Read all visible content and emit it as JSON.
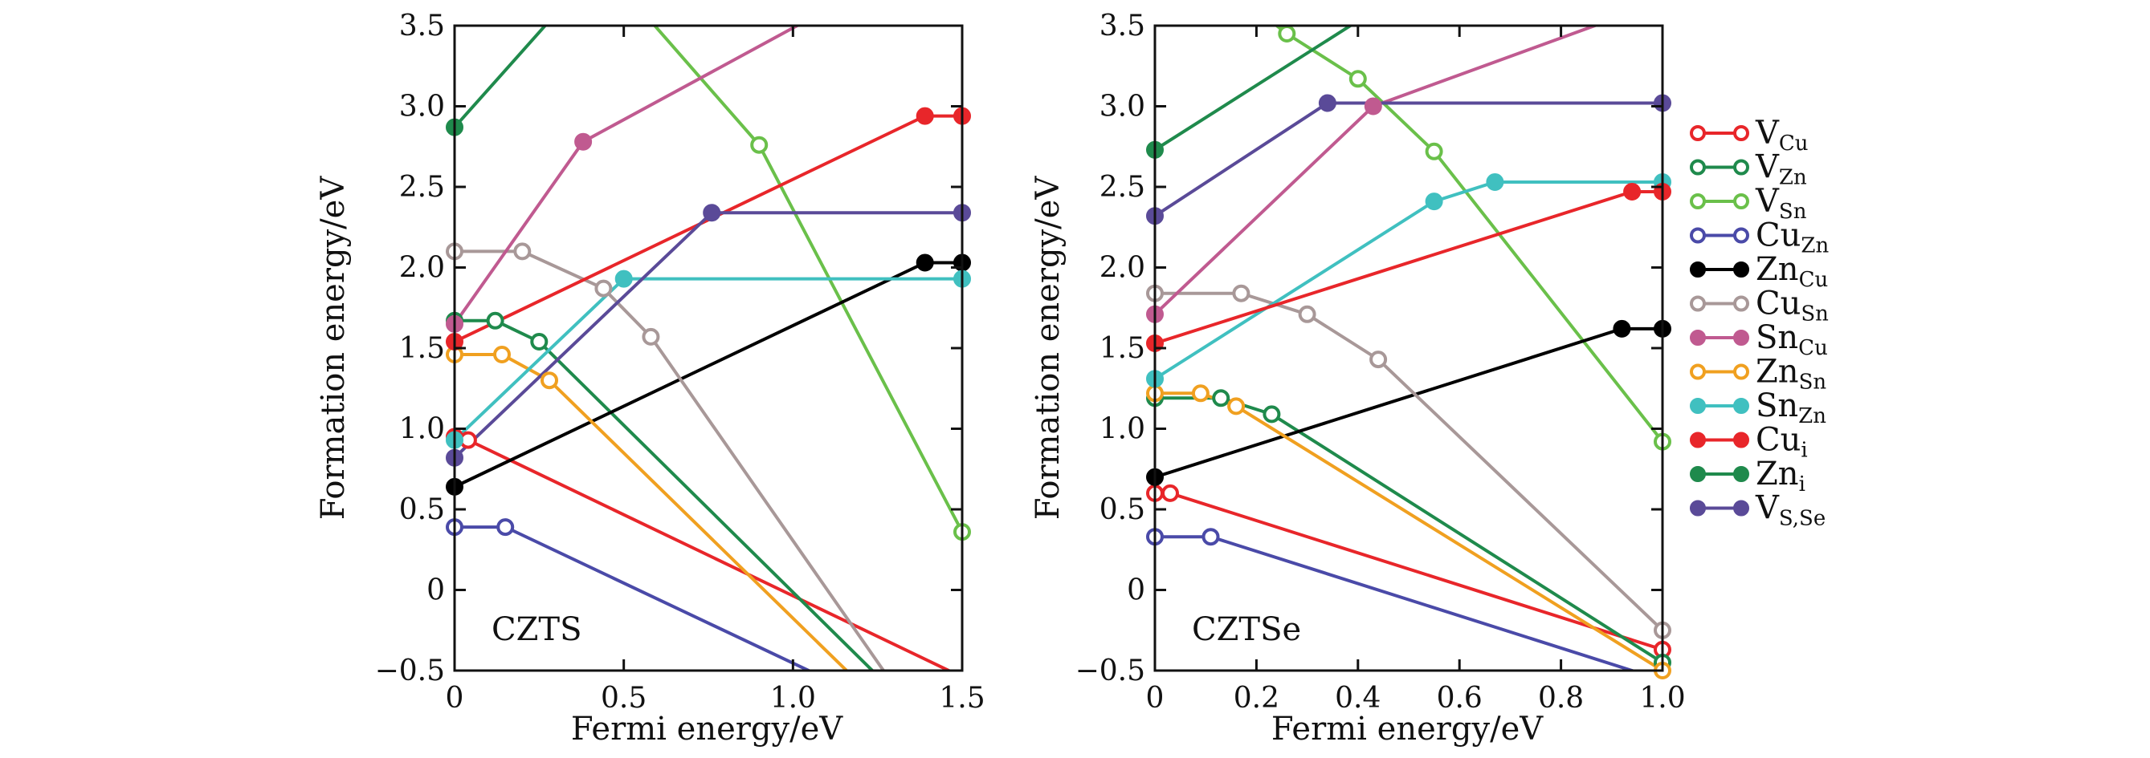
{
  "chart_data": [
    {
      "type": "line",
      "panel_label": "CZTS",
      "xlabel": "Fermi energy/eV",
      "ylabel": "Formation energy/eV",
      "xlim": [
        0,
        1.5
      ],
      "ylim": [
        -0.5,
        3.5
      ],
      "x_ticks": [
        "0",
        "0.5",
        "1.0",
        "1.5"
      ],
      "y_ticks": [
        "−0.5",
        "0",
        "0.5",
        "1.0",
        "1.5",
        "2.0",
        "2.5",
        "3.0",
        "3.5"
      ],
      "series": [
        {
          "id": "V_Cu",
          "color": "#e8262a",
          "marker": "open",
          "points": [
            [
              0,
              0.95
            ],
            [
              0.04,
              0.93
            ],
            [
              1.5,
              -0.54
            ]
          ]
        },
        {
          "id": "V_Zn",
          "color": "#1f8a4c",
          "marker": "open",
          "points": [
            [
              0,
              1.67
            ],
            [
              0.12,
              1.67
            ],
            [
              0.25,
              1.54
            ],
            [
              1.5,
              -1.05
            ]
          ]
        },
        {
          "id": "V_Sn",
          "color": "#6ac04a",
          "marker": "open",
          "points": [
            [
              0.55,
              3.6
            ],
            [
              0.9,
              2.76
            ],
            [
              1.5,
              0.36
            ]
          ]
        },
        {
          "id": "Cu_Zn",
          "color": "#4a4aa8",
          "marker": "open",
          "points": [
            [
              0,
              0.39
            ],
            [
              0.15,
              0.39
            ],
            [
              1.5,
              -0.95
            ]
          ]
        },
        {
          "id": "Zn_Cu",
          "color": "#000000",
          "marker": "filled",
          "points": [
            [
              0,
              0.64
            ],
            [
              1.39,
              2.03
            ],
            [
              1.5,
              2.03
            ]
          ]
        },
        {
          "id": "Cu_Sn",
          "color": "#a89898",
          "marker": "open",
          "points": [
            [
              0,
              2.1
            ],
            [
              0.2,
              2.1
            ],
            [
              0.44,
              1.87
            ],
            [
              0.58,
              1.57
            ],
            [
              1.5,
              -1.2
            ]
          ]
        },
        {
          "id": "Sn_Cu",
          "color": "#c05a90",
          "marker": "filled",
          "points": [
            [
              0,
              1.65
            ],
            [
              0.38,
              2.78
            ],
            [
              1.1,
              3.6
            ]
          ]
        },
        {
          "id": "Zn_Sn",
          "color": "#f0a020",
          "marker": "open",
          "points": [
            [
              0,
              1.46
            ],
            [
              0.14,
              1.46
            ],
            [
              0.28,
              1.3
            ],
            [
              1.5,
              -1.2
            ]
          ]
        },
        {
          "id": "Sn_Zn",
          "color": "#40c0c0",
          "marker": "filled",
          "points": [
            [
              0,
              0.93
            ],
            [
              0.5,
              1.93
            ],
            [
              1.5,
              1.93
            ]
          ]
        },
        {
          "id": "Cu_i",
          "color": "#e8262a",
          "marker": "filled",
          "points": [
            [
              0,
              1.54
            ],
            [
              1.39,
              2.94
            ],
            [
              1.5,
              2.94
            ]
          ]
        },
        {
          "id": "Zn_i",
          "color": "#1f8a4c",
          "marker": "filled",
          "points": [
            [
              0,
              2.87
            ],
            [
              0.31,
              3.6
            ]
          ]
        },
        {
          "id": "V_S,Se",
          "color": "#5a4a98",
          "marker": "filled",
          "points": [
            [
              0,
              0.82
            ],
            [
              0.76,
              2.34
            ],
            [
              1.5,
              2.34
            ]
          ]
        }
      ]
    },
    {
      "type": "line",
      "panel_label": "CZTSe",
      "xlabel": "Fermi energy/eV",
      "ylabel": "Formation energy/eV",
      "xlim": [
        0,
        1.0
      ],
      "ylim": [
        -0.5,
        3.5
      ],
      "x_ticks": [
        "0",
        "0.2",
        "0.4",
        "0.6",
        "0.8",
        "1.0"
      ],
      "y_ticks": [
        "−0.5",
        "0",
        "0.5",
        "1.0",
        "1.5",
        "2.0",
        "2.5",
        "3.0",
        "3.5"
      ],
      "series": [
        {
          "id": "V_Cu",
          "color": "#e8262a",
          "marker": "open",
          "points": [
            [
              0,
              0.6
            ],
            [
              0.03,
              0.6
            ],
            [
              1.0,
              -0.37
            ]
          ]
        },
        {
          "id": "V_Zn",
          "color": "#1f8a4c",
          "marker": "open",
          "points": [
            [
              0,
              1.19
            ],
            [
              0.13,
              1.19
            ],
            [
              0.23,
              1.09
            ],
            [
              1.0,
              -0.45
            ]
          ]
        },
        {
          "id": "V_Sn",
          "color": "#6ac04a",
          "marker": "open",
          "points": [
            [
              0.22,
              3.55
            ],
            [
              0.26,
              3.45
            ],
            [
              0.4,
              3.17
            ],
            [
              0.55,
              2.72
            ],
            [
              1.0,
              0.92
            ]
          ]
        },
        {
          "id": "Cu_Zn",
          "color": "#4a4aa8",
          "marker": "open",
          "points": [
            [
              0,
              0.33
            ],
            [
              0.11,
              0.33
            ],
            [
              1.0,
              -0.56
            ]
          ]
        },
        {
          "id": "Zn_Cu",
          "color": "#000000",
          "marker": "filled",
          "points": [
            [
              0,
              0.7
            ],
            [
              0.92,
              1.62
            ],
            [
              1.0,
              1.62
            ]
          ]
        },
        {
          "id": "Cu_Sn",
          "color": "#a89898",
          "marker": "open",
          "points": [
            [
              0,
              1.84
            ],
            [
              0.17,
              1.84
            ],
            [
              0.3,
              1.71
            ],
            [
              0.44,
              1.43
            ],
            [
              1.0,
              -0.25
            ]
          ]
        },
        {
          "id": "Sn_Cu",
          "color": "#c05a90",
          "marker": "filled",
          "points": [
            [
              0,
              1.71
            ],
            [
              0.43,
              3.0
            ],
            [
              0.91,
              3.55
            ]
          ]
        },
        {
          "id": "Zn_Sn",
          "color": "#f0a020",
          "marker": "open",
          "points": [
            [
              0,
              1.22
            ],
            [
              0.09,
              1.22
            ],
            [
              0.16,
              1.14
            ],
            [
              1.0,
              -0.5
            ]
          ]
        },
        {
          "id": "Sn_Zn",
          "color": "#40c0c0",
          "marker": "filled",
          "points": [
            [
              0,
              1.31
            ],
            [
              0.55,
              2.41
            ],
            [
              0.67,
              2.53
            ],
            [
              1.0,
              2.53
            ]
          ]
        },
        {
          "id": "Cu_i",
          "color": "#e8262a",
          "marker": "filled",
          "points": [
            [
              0,
              1.53
            ],
            [
              0.94,
              2.47
            ],
            [
              1.0,
              2.47
            ]
          ]
        },
        {
          "id": "Zn_i",
          "color": "#1f8a4c",
          "marker": "filled",
          "points": [
            [
              0,
              2.73
            ],
            [
              0.41,
              3.55
            ]
          ]
        },
        {
          "id": "V_S,Se",
          "color": "#5a4a98",
          "marker": "filled",
          "points": [
            [
              0,
              2.32
            ],
            [
              0.34,
              3.02
            ],
            [
              1.0,
              3.02
            ]
          ]
        }
      ]
    }
  ],
  "legend": {
    "items": [
      {
        "id": "V_Cu",
        "main": "V",
        "sub": "Cu",
        "color": "#e8262a",
        "marker": "open"
      },
      {
        "id": "V_Zn",
        "main": "V",
        "sub": "Zn",
        "color": "#1f8a4c",
        "marker": "open"
      },
      {
        "id": "V_Sn",
        "main": "V",
        "sub": "Sn",
        "color": "#6ac04a",
        "marker": "open"
      },
      {
        "id": "Cu_Zn",
        "main": "Cu",
        "sub": "Zn",
        "color": "#4a4aa8",
        "marker": "open"
      },
      {
        "id": "Zn_Cu",
        "main": "Zn",
        "sub": "Cu",
        "color": "#000000",
        "marker": "filled"
      },
      {
        "id": "Cu_Sn",
        "main": "Cu",
        "sub": "Sn",
        "color": "#a89898",
        "marker": "open"
      },
      {
        "id": "Sn_Cu",
        "main": "Sn",
        "sub": "Cu",
        "color": "#c05a90",
        "marker": "filled"
      },
      {
        "id": "Zn_Sn",
        "main": "Zn",
        "sub": "Sn",
        "color": "#f0a020",
        "marker": "open"
      },
      {
        "id": "Sn_Zn",
        "main": "Sn",
        "sub": "Zn",
        "color": "#40c0c0",
        "marker": "filled"
      },
      {
        "id": "Cu_i",
        "main": "Cu",
        "sub": "i",
        "color": "#e8262a",
        "marker": "filled"
      },
      {
        "id": "Zn_i",
        "main": "Zn",
        "sub": "i",
        "color": "#1f8a4c",
        "marker": "filled"
      },
      {
        "id": "V_S,Se",
        "main": "V",
        "sub": "S,Se",
        "color": "#5a4a98",
        "marker": "filled"
      }
    ]
  }
}
